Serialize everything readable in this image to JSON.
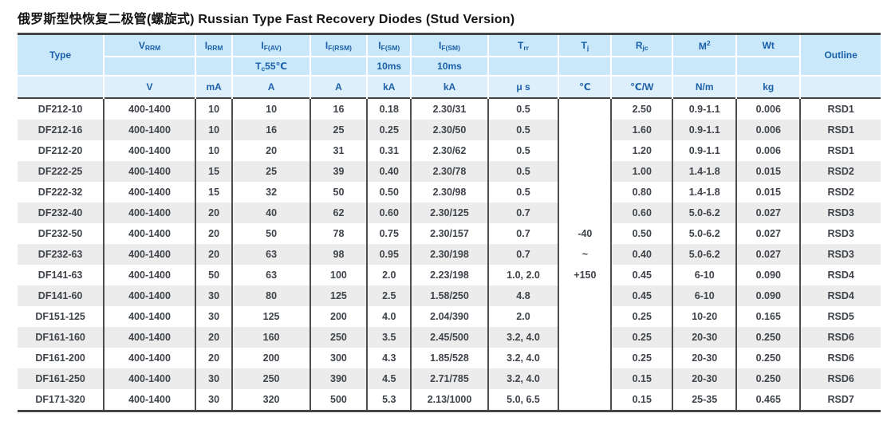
{
  "title": {
    "zh": "俄罗斯型快恢复二极管(螺旋式)",
    "en": " Russian Type Fast Recovery Diodes (Stud Version)"
  },
  "colors": {
    "header_bg": "#c9e8fa",
    "units_bg": "#ddeffb",
    "header_text": "#1b5fa9",
    "body_text": "#3f434a",
    "stripe": "#ececec",
    "rule": "#454545"
  },
  "table": {
    "header": {
      "type": "Type",
      "outline": "Outline",
      "row1": [
        {
          "b": "V",
          "s": "RRM"
        },
        {
          "b": "I",
          "s": "RRM"
        },
        {
          "b": "I",
          "s": "F(AV)"
        },
        {
          "b": "I",
          "s": "F(RSM)"
        },
        {
          "b": "I",
          "s": "F(SM)"
        },
        {
          "b": "I",
          "s": "F(SM)"
        },
        {
          "b": "T",
          "s": "rr"
        },
        {
          "b": "T",
          "s": "j"
        },
        {
          "b": "R",
          "s": "jc"
        },
        {
          "b": "M",
          "p": "2"
        },
        {
          "b": "Wt"
        }
      ],
      "row2": [
        {
          "b": ""
        },
        {
          "b": ""
        },
        {
          "b": "T",
          "s": "c",
          "t": "55℃"
        },
        {
          "b": ""
        },
        {
          "b": "10ms"
        },
        {
          "b": "10ms"
        },
        {
          "b": ""
        },
        {
          "b": ""
        },
        {
          "b": ""
        },
        {
          "b": ""
        },
        {
          "b": ""
        }
      ],
      "units": [
        "",
        "V",
        "mA",
        "A",
        "A",
        "kA",
        "kA",
        "μ s",
        "℃",
        "℃/W",
        "N/m",
        "kg",
        ""
      ]
    },
    "tj_range": [
      "-40",
      "~",
      "+150"
    ],
    "rows": [
      [
        "DF212-10",
        "400-1400",
        "10",
        "10",
        "16",
        "0.18",
        "2.30/31",
        "0.5",
        "2.50",
        "0.9-1.1",
        "0.006",
        "RSD1"
      ],
      [
        "DF212-16",
        "400-1400",
        "10",
        "16",
        "25",
        "0.25",
        "2.30/50",
        "0.5",
        "1.60",
        "0.9-1.1",
        "0.006",
        "RSD1"
      ],
      [
        "DF212-20",
        "400-1400",
        "10",
        "20",
        "31",
        "0.31",
        "2.30/62",
        "0.5",
        "1.20",
        "0.9-1.1",
        "0.006",
        "RSD1"
      ],
      [
        "DF222-25",
        "400-1400",
        "15",
        "25",
        "39",
        "0.40",
        "2.30/78",
        "0.5",
        "1.00",
        "1.4-1.8",
        "0.015",
        "RSD2"
      ],
      [
        "DF222-32",
        "400-1400",
        "15",
        "32",
        "50",
        "0.50",
        "2.30/98",
        "0.5",
        "0.80",
        "1.4-1.8",
        "0.015",
        "RSD2"
      ],
      [
        "DF232-40",
        "400-1400",
        "20",
        "40",
        "62",
        "0.60",
        "2.30/125",
        "0.7",
        "0.60",
        "5.0-6.2",
        "0.027",
        "RSD3"
      ],
      [
        "DF232-50",
        "400-1400",
        "20",
        "50",
        "78",
        "0.75",
        "2.30/157",
        "0.7",
        "0.50",
        "5.0-6.2",
        "0.027",
        "RSD3"
      ],
      [
        "DF232-63",
        "400-1400",
        "20",
        "63",
        "98",
        "0.95",
        "2.30/198",
        "0.7",
        "0.40",
        "5.0-6.2",
        "0.027",
        "RSD3"
      ],
      [
        "DF141-63",
        "400-1400",
        "50",
        "63",
        "100",
        "2.0",
        "2.23/198",
        "1.0, 2.0",
        "0.45",
        "6-10",
        "0.090",
        "RSD4"
      ],
      [
        "DF141-60",
        "400-1400",
        "30",
        "80",
        "125",
        "2.5",
        "1.58/250",
        "4.8",
        "0.45",
        "6-10",
        "0.090",
        "RSD4"
      ],
      [
        "DF151-125",
        "400-1400",
        "30",
        "125",
        "200",
        "4.0",
        "2.04/390",
        "2.0",
        "0.25",
        "10-20",
        "0.165",
        "RSD5"
      ],
      [
        "DF161-160",
        "400-1400",
        "20",
        "160",
        "250",
        "3.5",
        "2.45/500",
        "3.2, 4.0",
        "0.25",
        "20-30",
        "0.250",
        "RSD6"
      ],
      [
        "DF161-200",
        "400-1400",
        "20",
        "200",
        "300",
        "4.3",
        "1.85/528",
        "3.2, 4.0",
        "0.25",
        "20-30",
        "0.250",
        "RSD6"
      ],
      [
        "DF161-250",
        "400-1400",
        "30",
        "250",
        "390",
        "4.5",
        "2.71/785",
        "3.2, 4.0",
        "0.15",
        "20-30",
        "0.250",
        "RSD6"
      ],
      [
        "DF171-320",
        "400-1400",
        "30",
        "320",
        "500",
        "5.3",
        "2.13/1000",
        "5.0, 6.5",
        "0.15",
        "25-35",
        "0.465",
        "RSD7"
      ]
    ]
  }
}
